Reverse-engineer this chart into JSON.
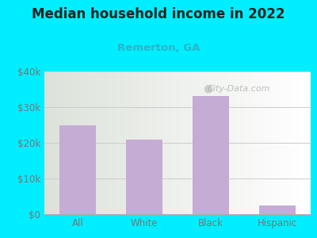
{
  "title": "Median household income in 2022",
  "subtitle": "Remerton, GA",
  "categories": [
    "All",
    "White",
    "Black",
    "Hispanic"
  ],
  "values": [
    25000,
    21000,
    33000,
    2500
  ],
  "bar_color": "#c4acd4",
  "title_fontsize": 12,
  "subtitle_fontsize": 9.5,
  "subtitle_color": "#2ab5c8",
  "tick_color": "#777777",
  "label_color": "#777777",
  "ylim": [
    0,
    40000
  ],
  "yticks": [
    0,
    10000,
    20000,
    30000,
    40000
  ],
  "ytick_labels": [
    "$0",
    "$10k",
    "$20k",
    "$30k",
    "$40k"
  ],
  "bg_outer": "#00eeff",
  "watermark": "City-Data.com",
  "grid_color": "#cccccc",
  "title_color": "#222222"
}
